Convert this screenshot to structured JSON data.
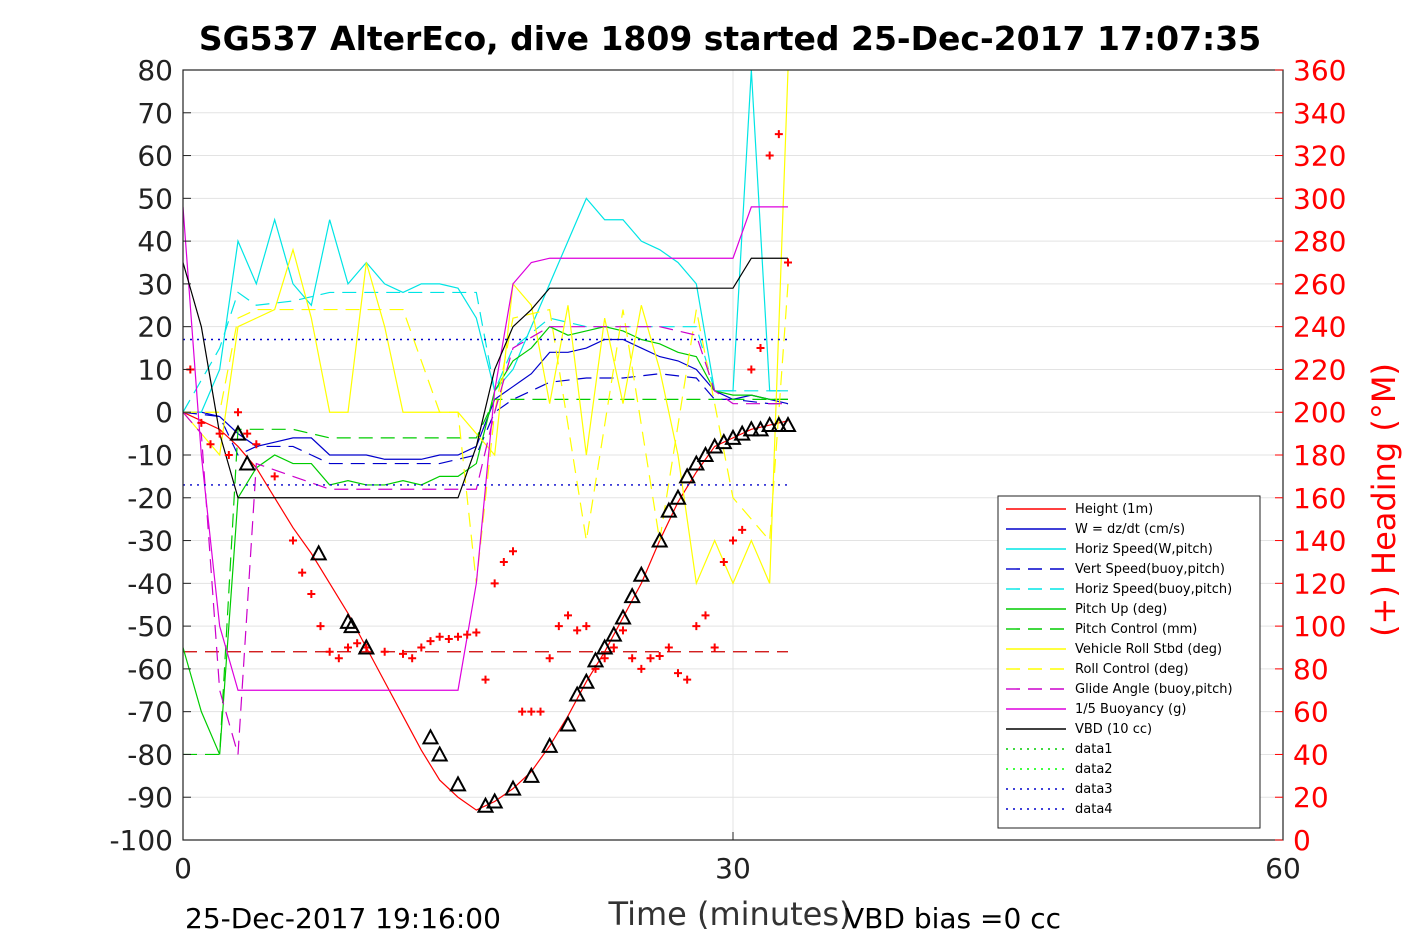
{
  "chart_data": {
    "type": "line",
    "title": "SG537 AlterEco, dive 1809 started 25-Dec-2017 17:07:35",
    "xlabel": "Time (minutes)",
    "ylabel": "",
    "y2label": "(+) Heading (°M)",
    "xlim": [
      0,
      60
    ],
    "ylim": [
      -100,
      80
    ],
    "y2lim": [
      0,
      360
    ],
    "x_ticks": [
      "0",
      "30",
      "60"
    ],
    "y_ticks": [
      "80",
      "70",
      "60",
      "50",
      "40",
      "30",
      "20",
      "10",
      "0",
      "-10",
      "-20",
      "-30",
      "-40",
      "-50",
      "-60",
      "-70",
      "-80",
      "-90",
      "-100"
    ],
    "y2_ticks": [
      "360",
      "340",
      "320",
      "300",
      "280",
      "260",
      "240",
      "220",
      "200",
      "180",
      "160",
      "140",
      "120",
      "100",
      "80",
      "60",
      "40",
      "20",
      "0"
    ],
    "grid": true,
    "legend_position": "bottom-right",
    "footer_left": "25-Dec-2017 19:16:00",
    "footer_right": "VBD bias =0 cc",
    "colors": {
      "height": "#ff0000",
      "w": "#0000cc",
      "hspeed": "#00e5e5",
      "pitch": "#00cc00",
      "roll": "#ffff00",
      "glide": "#cc00cc",
      "buoyancy": "#dd00dd",
      "vbd": "#000000",
      "heading": "#ff0000"
    },
    "series": [
      {
        "name": "Height (1m)",
        "color": "#ff0000",
        "style": "solid",
        "x": [
          0,
          2,
          3,
          4,
          5,
          6,
          7,
          8,
          9,
          10,
          11,
          12,
          13,
          14,
          15,
          16,
          17,
          18,
          19,
          20,
          21,
          22,
          23,
          24,
          25,
          26,
          27,
          28,
          29,
          30,
          31,
          32,
          33
        ],
        "values": [
          0,
          -4,
          -8,
          -13,
          -20,
          -27,
          -33,
          -40,
          -47,
          -55,
          -63,
          -71,
          -79,
          -86,
          -90,
          -93,
          -91,
          -88,
          -84,
          -78,
          -71,
          -63,
          -56,
          -48,
          -40,
          -30,
          -21,
          -14,
          -8,
          -6,
          -4,
          -3,
          -2
        ]
      },
      {
        "name": "W = dz/dt (cm/s)",
        "color": "#0000cc",
        "style": "solid",
        "x": [
          0,
          1,
          2,
          3,
          4,
          5,
          6,
          7,
          8,
          9,
          10,
          11,
          12,
          13,
          14,
          15,
          16,
          17,
          18,
          19,
          20,
          21,
          22,
          23,
          24,
          25,
          26,
          27,
          28,
          29,
          30,
          31,
          32,
          33
        ],
        "values": [
          0,
          0,
          -1,
          -5,
          -8,
          -7,
          -6,
          -6,
          -10,
          -10,
          -10,
          -11,
          -11,
          -11,
          -10,
          -10,
          -8,
          3,
          6,
          9,
          14,
          14,
          15,
          17,
          17,
          15,
          13,
          12,
          10,
          5,
          3,
          4,
          3,
          2
        ]
      },
      {
        "name": "Horiz Speed(W,pitch)",
        "color": "#00e5e5",
        "style": "solid",
        "x": [
          0,
          1,
          2,
          3,
          4,
          5,
          6,
          7,
          8,
          9,
          10,
          11,
          12,
          13,
          14,
          15,
          16,
          17,
          18,
          19,
          20,
          21,
          22,
          23,
          24,
          25,
          26,
          27,
          28,
          29,
          30,
          31,
          32,
          33
        ],
        "values": [
          0,
          0,
          10,
          40,
          30,
          45,
          30,
          25,
          45,
          30,
          35,
          30,
          28,
          30,
          30,
          29,
          22,
          5,
          10,
          20,
          30,
          40,
          50,
          45,
          45,
          40,
          38,
          35,
          30,
          5,
          5,
          80,
          5,
          5
        ]
      },
      {
        "name": "Vert Speed(buoy,pitch)",
        "color": "#0000cc",
        "style": "dashed",
        "x": [
          0,
          2,
          3,
          4,
          6,
          8,
          10,
          12,
          14,
          16,
          17,
          18,
          20,
          22,
          24,
          26,
          28,
          29,
          30,
          32,
          33
        ],
        "values": [
          0,
          -1,
          -10,
          -8,
          -8,
          -12,
          -12,
          -12,
          -12,
          -10,
          0,
          3,
          7,
          8,
          8,
          9,
          8,
          3,
          3,
          2,
          2
        ]
      },
      {
        "name": "Horiz Speed(buoy,pitch)",
        "color": "#00e5e5",
        "style": "dashed",
        "x": [
          0,
          2,
          3,
          4,
          6,
          8,
          10,
          12,
          14,
          16,
          17,
          18,
          20,
          22,
          24,
          26,
          28,
          29,
          30,
          32,
          33
        ],
        "values": [
          0,
          15,
          28,
          25,
          26,
          28,
          28,
          28,
          28,
          28,
          5,
          15,
          22,
          20,
          20,
          20,
          20,
          5,
          5,
          5,
          5
        ]
      },
      {
        "name": "Pitch Up (deg)",
        "color": "#00cc00",
        "style": "solid",
        "x": [
          0,
          1,
          2,
          3,
          4,
          5,
          6,
          7,
          8,
          9,
          10,
          11,
          12,
          13,
          14,
          15,
          16,
          17,
          18,
          19,
          20,
          21,
          22,
          23,
          24,
          25,
          26,
          27,
          28,
          29,
          30,
          31,
          32,
          33
        ],
        "values": [
          -55,
          -70,
          -80,
          -20,
          -13,
          -10,
          -12,
          -12,
          -17,
          -16,
          -17,
          -17,
          -16,
          -17,
          -15,
          -15,
          -12,
          5,
          12,
          15,
          20,
          18,
          19,
          20,
          19,
          17,
          16,
          14,
          13,
          5,
          4,
          4,
          3,
          3
        ]
      },
      {
        "name": "Pitch Control (mm)",
        "color": "#00cc00",
        "style": "dashed",
        "x": [
          0,
          2,
          3,
          4,
          6,
          8,
          10,
          12,
          14,
          16,
          17,
          18,
          20,
          22,
          24,
          26,
          28,
          29,
          30,
          32,
          33
        ],
        "values": [
          -80,
          -80,
          -4,
          -4,
          -4,
          -6,
          -6,
          -6,
          -6,
          -6,
          3,
          3,
          3,
          3,
          3,
          3,
          3,
          3,
          3,
          3,
          3
        ]
      },
      {
        "name": "Vehicle Roll Stbd (deg)",
        "color": "#ffff00",
        "style": "solid",
        "x": [
          0,
          1,
          2,
          3,
          4,
          5,
          6,
          7,
          8,
          9,
          10,
          11,
          12,
          13,
          14,
          15,
          16,
          17,
          18,
          19,
          20,
          21,
          22,
          23,
          24,
          25,
          26,
          27,
          28,
          29,
          30,
          31,
          32,
          33
        ],
        "values": [
          0,
          -5,
          -10,
          20,
          22,
          24,
          38,
          22,
          0,
          0,
          35,
          20,
          0,
          0,
          0,
          0,
          -5,
          -10,
          30,
          25,
          2,
          25,
          -10,
          22,
          2,
          25,
          10,
          -10,
          -40,
          -30,
          -40,
          -30,
          -40,
          80
        ]
      },
      {
        "name": "Roll Control (deg)",
        "color": "#ffff00",
        "style": "dashed",
        "x": [
          0,
          2,
          3,
          4,
          6,
          8,
          10,
          12,
          14,
          15,
          16,
          17,
          18,
          20,
          22,
          24,
          26,
          28,
          30,
          32,
          33
        ],
        "values": [
          0,
          0,
          22,
          24,
          24,
          24,
          24,
          24,
          0,
          0,
          -40,
          0,
          22,
          24,
          -30,
          24,
          -30,
          24,
          -20,
          -30,
          30
        ]
      },
      {
        "name": "Glide Angle (buoy,pitch)",
        "color": "#cc00cc",
        "style": "dashed",
        "x": [
          0,
          1,
          2,
          3,
          4,
          6,
          8,
          10,
          12,
          14,
          16,
          17,
          18,
          20,
          22,
          24,
          26,
          28,
          29,
          30,
          32,
          33
        ],
        "values": [
          0,
          -5,
          -65,
          -80,
          -12,
          -15,
          -18,
          -18,
          -18,
          -18,
          -18,
          0,
          15,
          20,
          20,
          20,
          20,
          18,
          5,
          2,
          2,
          2
        ]
      },
      {
        "name": "1/5 Buoyancy (g)",
        "color": "#dd00dd",
        "style": "solid",
        "x": [
          0,
          1,
          2,
          3,
          4,
          8,
          12,
          15,
          16,
          17,
          18,
          19,
          20,
          25,
          28,
          29,
          30,
          31,
          32,
          33
        ],
        "values": [
          48,
          -10,
          -50,
          -65,
          -65,
          -65,
          -65,
          -65,
          -40,
          5,
          30,
          35,
          36,
          36,
          36,
          36,
          36,
          48,
          48,
          48
        ]
      },
      {
        "name": "VBD (10 cc)",
        "color": "#000000",
        "style": "solid",
        "x": [
          0,
          1,
          2,
          3,
          4,
          8,
          12,
          15,
          16,
          17,
          18,
          19,
          20,
          25,
          28,
          29,
          30,
          31,
          32,
          33
        ],
        "values": [
          35,
          20,
          -5,
          -20,
          -20,
          -20,
          -20,
          -20,
          -8,
          10,
          20,
          24,
          29,
          29,
          29,
          29,
          29,
          36,
          36,
          36
        ]
      },
      {
        "name": "data1",
        "color": "#00cc00",
        "style": "dotted",
        "x": [],
        "values": []
      },
      {
        "name": "data2",
        "color": "#00ff00",
        "style": "dotted",
        "x": [],
        "values": []
      },
      {
        "name": "data3",
        "color": "#0000cc",
        "style": "dotted",
        "x": [
          0,
          33
        ],
        "values": [
          -17,
          -17
        ]
      },
      {
        "name": "data4",
        "color": "#0000cc",
        "style": "dotted",
        "x": [
          0,
          33
        ],
        "values": [
          17,
          17
        ]
      }
    ],
    "reference_lines": [
      {
        "color": "#cc0000",
        "style": "dashed",
        "x": [
          0,
          33
        ],
        "values": [
          -56,
          -56
        ]
      }
    ],
    "heading_points": {
      "x": [
        0.4,
        1,
        1.5,
        2,
        2.5,
        3,
        3.5,
        4,
        5,
        6,
        6.5,
        7,
        7.5,
        8,
        8.5,
        9,
        9.5,
        10,
        11,
        12,
        12.5,
        13,
        13.5,
        14,
        14.5,
        15,
        15.5,
        16,
        16.5,
        17,
        17.5,
        18,
        18.5,
        19,
        19.5,
        20,
        20.5,
        21,
        21.5,
        22,
        22.5,
        23,
        23.5,
        24,
        24.5,
        25,
        25.5,
        26,
        26.5,
        27,
        27.5,
        28,
        28.5,
        29,
        29.5,
        30,
        30.5,
        31,
        31.5,
        32,
        32.5,
        33
      ],
      "values": [
        220,
        195,
        185,
        190,
        180,
        200,
        190,
        185,
        170,
        140,
        125,
        115,
        100,
        88,
        85,
        90,
        92,
        90,
        88,
        87,
        85,
        90,
        93,
        95,
        94,
        95,
        96,
        97,
        75,
        120,
        130,
        135,
        60,
        60,
        60,
        85,
        100,
        105,
        98,
        100,
        80,
        85,
        90,
        98,
        85,
        80,
        85,
        86,
        90,
        78,
        75,
        100,
        105,
        90,
        130,
        140,
        145,
        220,
        230,
        320,
        330,
        270
      ]
    },
    "markers": {
      "x": [
        3,
        3.5,
        7.4,
        9,
        9.2,
        10,
        13.5,
        14,
        15,
        16.5,
        17,
        18,
        19,
        20,
        21,
        21.5,
        22,
        22.5,
        23,
        23.5,
        24,
        24.5,
        25,
        26,
        26.5,
        27,
        27.5,
        28,
        28.5,
        29,
        29.5,
        30,
        30.5,
        31,
        31.5,
        32,
        32.5,
        33
      ],
      "values": [
        -5,
        -12,
        -33,
        -49,
        -50,
        -55,
        -76,
        -80,
        -87,
        -92,
        -91,
        -88,
        -85,
        -78,
        -73,
        -66,
        -63,
        -58,
        -55,
        -52,
        -48,
        -43,
        -38,
        -30,
        -23,
        -20,
        -15,
        -12,
        -10,
        -8,
        -7,
        -6,
        -5,
        -4,
        -4,
        -3,
        -3,
        -3
      ]
    }
  }
}
